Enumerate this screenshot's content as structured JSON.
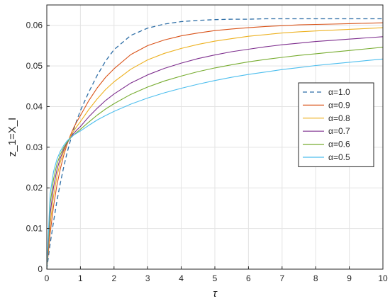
{
  "chart_data": {
    "type": "line",
    "xlabel": "τ",
    "ylabel": "z_1=X_I",
    "xlim": [
      0,
      10
    ],
    "ylim": [
      0,
      0.065
    ],
    "xticks": [
      "0",
      "1",
      "2",
      "3",
      "4",
      "5",
      "6",
      "7",
      "8",
      "9",
      "10"
    ],
    "yticks": [
      "0",
      "0.01",
      "0.02",
      "0.03",
      "0.04",
      "0.05",
      "0.06"
    ],
    "grid": true,
    "legend": "right",
    "x": [
      0,
      0.1,
      0.2,
      0.3,
      0.4,
      0.5,
      0.6,
      0.7,
      0.8,
      0.9,
      1,
      1.25,
      1.5,
      1.75,
      2,
      2.5,
      3,
      3.5,
      4,
      4.5,
      5,
      5.5,
      6,
      6.5,
      7,
      7.5,
      8,
      8.5,
      9,
      9.5,
      10
    ],
    "series": [
      {
        "name": "α=1.0",
        "color": "#2e6ea6",
        "dash": true,
        "values": [
          0,
          0.0062,
          0.0117,
          0.0167,
          0.0211,
          0.025,
          0.0285,
          0.0316,
          0.0344,
          0.0368,
          0.039,
          0.0436,
          0.0477,
          0.0512,
          0.054,
          0.0575,
          0.0593,
          0.0603,
          0.0609,
          0.0612,
          0.0614,
          0.0615,
          0.0615,
          0.0616,
          0.0616,
          0.0616,
          0.0616,
          0.0616,
          0.0616,
          0.0616,
          0.0616
        ]
      },
      {
        "name": "α=0.9",
        "color": "#d95319",
        "values": [
          0,
          0.0088,
          0.0155,
          0.0206,
          0.0246,
          0.0279,
          0.0306,
          0.0329,
          0.0348,
          0.0364,
          0.0378,
          0.0415,
          0.0446,
          0.0472,
          0.0493,
          0.0528,
          0.055,
          0.0564,
          0.0574,
          0.0581,
          0.0587,
          0.0591,
          0.0594,
          0.0597,
          0.0599,
          0.0601,
          0.0602,
          0.0603,
          0.0604,
          0.0605,
          0.0606
        ]
      },
      {
        "name": "α=0.8",
        "color": "#edb120",
        "values": [
          0,
          0.011,
          0.018,
          0.0228,
          0.0263,
          0.0289,
          0.0309,
          0.0326,
          0.034,
          0.0352,
          0.0363,
          0.0393,
          0.0419,
          0.0442,
          0.0461,
          0.0492,
          0.0515,
          0.0531,
          0.0543,
          0.0553,
          0.0561,
          0.0567,
          0.0573,
          0.0577,
          0.0581,
          0.0584,
          0.0586,
          0.0588,
          0.059,
          0.0592,
          0.0594
        ]
      },
      {
        "name": "α=0.7",
        "color": "#7e2f8e",
        "values": [
          0,
          0.0135,
          0.0202,
          0.0244,
          0.0273,
          0.0294,
          0.031,
          0.0323,
          0.0334,
          0.0343,
          0.0351,
          0.0375,
          0.0396,
          0.0415,
          0.0431,
          0.0458,
          0.0478,
          0.0494,
          0.0507,
          0.0518,
          0.0527,
          0.0535,
          0.0541,
          0.0547,
          0.0552,
          0.0556,
          0.056,
          0.0563,
          0.0566,
          0.0569,
          0.0572
        ]
      },
      {
        "name": "α=0.6",
        "color": "#77ac30",
        "values": [
          0,
          0.016,
          0.0222,
          0.0258,
          0.0282,
          0.0299,
          0.0312,
          0.0322,
          0.033,
          0.0337,
          0.0344,
          0.0362,
          0.0379,
          0.0394,
          0.0407,
          0.043,
          0.0448,
          0.0463,
          0.0475,
          0.0486,
          0.0495,
          0.0503,
          0.051,
          0.0516,
          0.0521,
          0.0526,
          0.053,
          0.0534,
          0.0538,
          0.0542,
          0.0546
        ]
      },
      {
        "name": "α=0.5",
        "color": "#4dbeee",
        "values": [
          0,
          0.0185,
          0.024,
          0.027,
          0.029,
          0.0304,
          0.0315,
          0.0323,
          0.033,
          0.0335,
          0.034,
          0.0354,
          0.0367,
          0.0378,
          0.0388,
          0.0406,
          0.0421,
          0.0434,
          0.0445,
          0.0455,
          0.0464,
          0.0472,
          0.0479,
          0.0485,
          0.0491,
          0.0496,
          0.0501,
          0.0505,
          0.0509,
          0.0513,
          0.0517
        ]
      }
    ]
  }
}
